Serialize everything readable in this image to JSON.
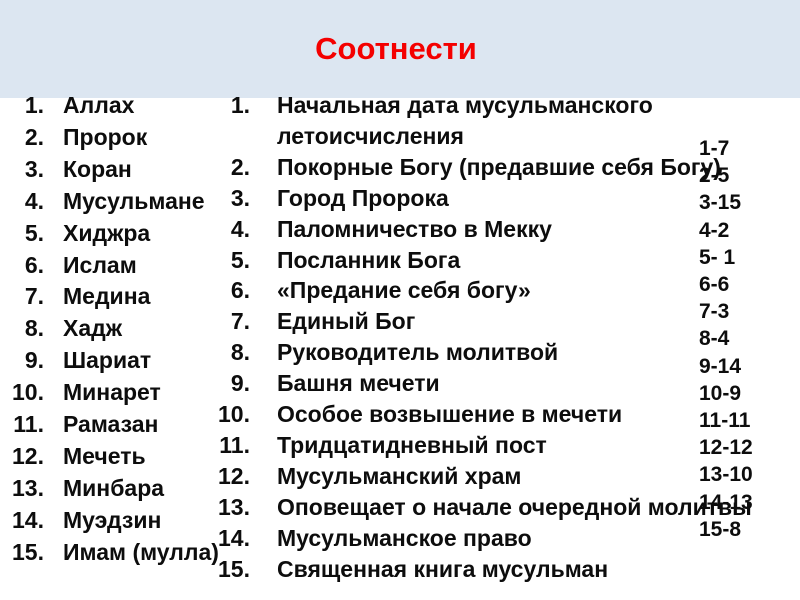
{
  "slide_title": "Соотнести",
  "colors": {
    "band": "#dce6f1",
    "title": "#f40000",
    "text": "#0d0d0d"
  },
  "terms": {
    "items": [
      "Аллах",
      "Пророк",
      "Коран",
      "Мусульмане",
      "Хиджра",
      "Ислам",
      "Медина",
      "Хадж",
      "Шариат",
      "Минарет",
      "Рамазан",
      "Мечеть",
      "Минбара",
      "Муэдзин",
      "Имам (мулла)"
    ]
  },
  "definitions": {
    "items": [
      "Начальная дата мусульманского летоисчисления",
      "Покорные Богу (предавшие себя Богу)",
      "Город Пророка",
      "Паломничество в Мекку",
      "Посланник Бога",
      "«Предание себя богу»",
      "Единый Бог",
      "Руководитель молитвой",
      "Башня мечети",
      "Особое возвышение в мечети",
      "Тридцатидневный пост",
      "Мусульманский храм",
      "Оповещает о начале очередной молитвы",
      "Мусульманское право",
      "Священная книга мусульман"
    ]
  },
  "answer_key": {
    "items": [
      "1-7",
      "2-5",
      "3-15",
      "4-2",
      "5- 1",
      "6-6",
      "7-3",
      "8-4",
      "9-14",
      "10-9",
      "11-11",
      "12-12",
      "13-10",
      "14-13",
      "15-8"
    ]
  }
}
